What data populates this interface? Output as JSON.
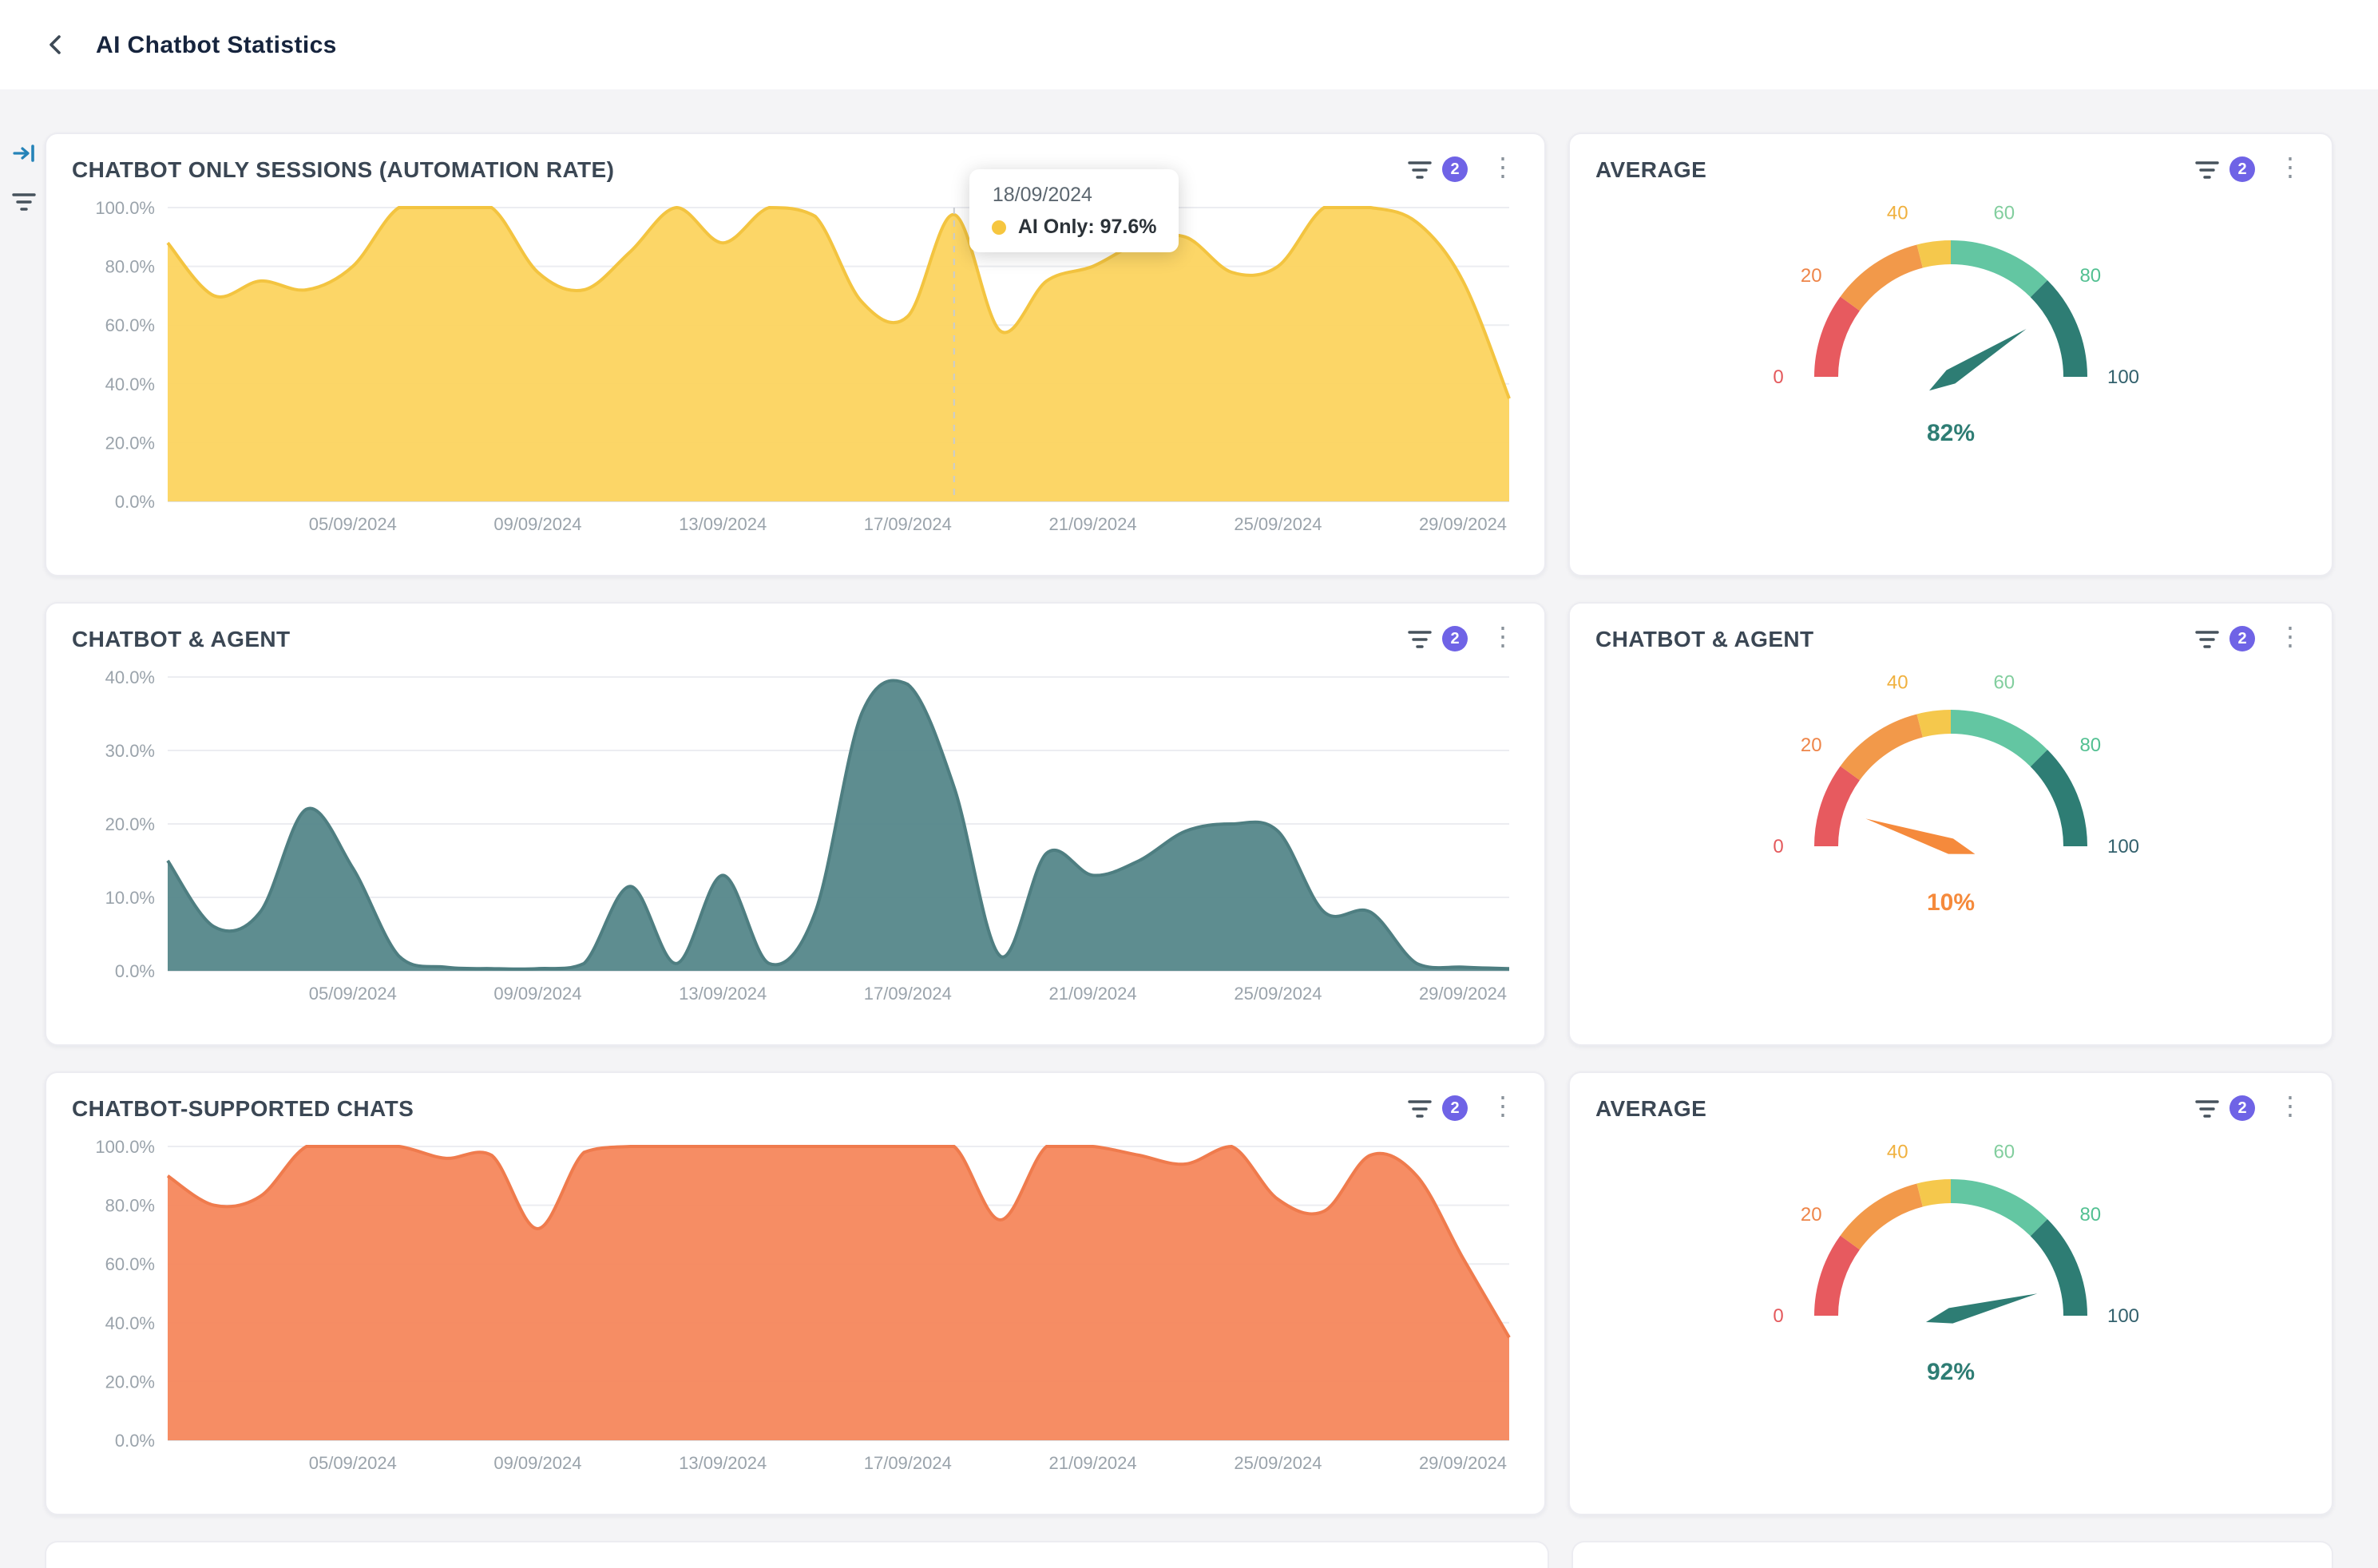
{
  "page": {
    "title": "AI Chatbot Statistics"
  },
  "ui": {
    "badge_color": "#6F63E6",
    "background": "#F4F4F6",
    "card_background": "#FFFFFF"
  },
  "cards": [
    {
      "title": "CHATBOT ONLY SESSIONS (AUTOMATION RATE)",
      "filter_count": "2"
    },
    {
      "title": "AVERAGE",
      "filter_count": "2"
    },
    {
      "title": "CHATBOT & AGENT",
      "filter_count": "2"
    },
    {
      "title": "CHATBOT & AGENT",
      "filter_count": "2"
    },
    {
      "title": "CHATBOT-SUPPORTED CHATS",
      "filter_count": "2"
    },
    {
      "title": "AVERAGE",
      "filter_count": "2"
    }
  ],
  "tooltip": {
    "date": "18/09/2024",
    "text": "AI Only: 97.6%",
    "dot_color": "#F6C63F"
  },
  "chart_data": [
    {
      "type": "area",
      "title": "CHATBOT ONLY SESSIONS (AUTOMATION RATE)",
      "ylim": [
        0,
        100
      ],
      "yticks": [
        {
          "v": 0,
          "label": "0.0%"
        },
        {
          "v": 20,
          "label": "20.0%"
        },
        {
          "v": 40,
          "label": "40.0%"
        },
        {
          "v": 60,
          "label": "60.0%"
        },
        {
          "v": 80,
          "label": "80.0%"
        },
        {
          "v": 100,
          "label": "100.0%"
        }
      ],
      "xticks": [
        {
          "day": 5,
          "label": "05/09/2024"
        },
        {
          "day": 9,
          "label": "09/09/2024"
        },
        {
          "day": 13,
          "label": "13/09/2024"
        },
        {
          "day": 17,
          "label": "17/09/2024"
        },
        {
          "day": 21,
          "label": "21/09/2024"
        },
        {
          "day": 25,
          "label": "25/09/2024"
        },
        {
          "day": 29,
          "label": "29/09/2024"
        }
      ],
      "values": [
        88,
        70,
        75,
        72,
        80,
        100,
        100,
        100,
        78,
        72,
        85,
        100,
        88,
        100,
        97,
        68,
        63,
        97.6,
        58,
        75,
        80,
        88,
        90,
        78,
        80,
        100,
        100,
        95,
        75,
        35
      ],
      "fill": "#FCD45F",
      "stroke": "#F3C440",
      "marker_day": 18
    },
    {
      "type": "gauge",
      "title": "AVERAGE",
      "range": [
        0,
        100
      ],
      "value": 82,
      "display": "82%",
      "needle_color": "#2E7D74",
      "value_color": "#2E7D74",
      "segments": [
        {
          "from": 0,
          "to": 20,
          "color": "#E75A5F"
        },
        {
          "from": 20,
          "to": 42,
          "color": "#F2994A"
        },
        {
          "from": 42,
          "to": 50,
          "color": "#F5C84C"
        },
        {
          "from": 50,
          "to": 75,
          "color": "#63C6A2"
        },
        {
          "from": 75,
          "to": 100,
          "color": "#2E7D74"
        }
      ],
      "ticks": [
        {
          "v": 0,
          "label": "0",
          "color": "#E4595C"
        },
        {
          "v": 20,
          "label": "20",
          "color": "#EE8549"
        },
        {
          "v": 40,
          "label": "40",
          "color": "#F0B13F"
        },
        {
          "v": 60,
          "label": "60",
          "color": "#82CE9E"
        },
        {
          "v": 80,
          "label": "80",
          "color": "#53C092"
        },
        {
          "v": 100,
          "label": "100",
          "color": "#33616D"
        }
      ]
    },
    {
      "type": "area",
      "title": "CHATBOT & AGENT",
      "ylim": [
        0,
        40
      ],
      "yticks": [
        {
          "v": 0,
          "label": "0.0%"
        },
        {
          "v": 10,
          "label": "10.0%"
        },
        {
          "v": 20,
          "label": "20.0%"
        },
        {
          "v": 30,
          "label": "30.0%"
        },
        {
          "v": 40,
          "label": "40.0%"
        }
      ],
      "xticks": [
        {
          "day": 5,
          "label": "05/09/2024"
        },
        {
          "day": 9,
          "label": "09/09/2024"
        },
        {
          "day": 13,
          "label": "13/09/2024"
        },
        {
          "day": 17,
          "label": "17/09/2024"
        },
        {
          "day": 21,
          "label": "21/09/2024"
        },
        {
          "day": 25,
          "label": "25/09/2024"
        },
        {
          "day": 29,
          "label": "29/09/2024"
        }
      ],
      "values": [
        15,
        6,
        8,
        22,
        14,
        2,
        0.5,
        0.3,
        0.3,
        1,
        11.5,
        1,
        13,
        1,
        8,
        35,
        39,
        25,
        2,
        16,
        13,
        15,
        19,
        20,
        19,
        8,
        8,
        1,
        0.5,
        0.3
      ],
      "fill": "#55878A",
      "stroke": "#4E7E81"
    },
    {
      "type": "gauge",
      "title": "CHATBOT & AGENT",
      "range": [
        0,
        100
      ],
      "value": 10,
      "display": "10%",
      "needle_color": "#F58A3C",
      "value_color": "#F58A3C",
      "segments": [
        {
          "from": 0,
          "to": 20,
          "color": "#E75A5F"
        },
        {
          "from": 20,
          "to": 42,
          "color": "#F2994A"
        },
        {
          "from": 42,
          "to": 50,
          "color": "#F5C84C"
        },
        {
          "from": 50,
          "to": 75,
          "color": "#63C6A2"
        },
        {
          "from": 75,
          "to": 100,
          "color": "#2E7D74"
        }
      ],
      "ticks": [
        {
          "v": 0,
          "label": "0",
          "color": "#E4595C"
        },
        {
          "v": 20,
          "label": "20",
          "color": "#EE8549"
        },
        {
          "v": 40,
          "label": "40",
          "color": "#F0B13F"
        },
        {
          "v": 60,
          "label": "60",
          "color": "#82CE9E"
        },
        {
          "v": 80,
          "label": "80",
          "color": "#53C092"
        },
        {
          "v": 100,
          "label": "100",
          "color": "#33616D"
        }
      ]
    },
    {
      "type": "area",
      "title": "CHATBOT-SUPPORTED CHATS",
      "ylim": [
        0,
        100
      ],
      "yticks": [
        {
          "v": 0,
          "label": "0.0%"
        },
        {
          "v": 20,
          "label": "20.0%"
        },
        {
          "v": 40,
          "label": "40.0%"
        },
        {
          "v": 60,
          "label": "60.0%"
        },
        {
          "v": 80,
          "label": "80.0%"
        },
        {
          "v": 100,
          "label": "100.0%"
        }
      ],
      "xticks": [
        {
          "day": 5,
          "label": "05/09/2024"
        },
        {
          "day": 9,
          "label": "09/09/2024"
        },
        {
          "day": 13,
          "label": "13/09/2024"
        },
        {
          "day": 17,
          "label": "17/09/2024"
        },
        {
          "day": 21,
          "label": "21/09/2024"
        },
        {
          "day": 25,
          "label": "25/09/2024"
        },
        {
          "day": 29,
          "label": "29/09/2024"
        }
      ],
      "values": [
        90,
        80,
        83,
        100,
        100,
        100,
        96,
        97,
        72,
        98,
        100,
        100,
        100,
        100,
        100,
        100,
        100,
        100,
        75,
        100,
        100,
        97,
        94,
        100,
        82,
        78,
        97,
        90,
        62,
        35
      ],
      "fill": "#F5875C",
      "stroke": "#EF7B4D"
    },
    {
      "type": "gauge",
      "title": "AVERAGE",
      "range": [
        0,
        100
      ],
      "value": 92,
      "display": "92%",
      "needle_color": "#2E7D74",
      "value_color": "#2E7D74",
      "segments": [
        {
          "from": 0,
          "to": 20,
          "color": "#E75A5F"
        },
        {
          "from": 20,
          "to": 42,
          "color": "#F2994A"
        },
        {
          "from": 42,
          "to": 50,
          "color": "#F5C84C"
        },
        {
          "from": 50,
          "to": 75,
          "color": "#63C6A2"
        },
        {
          "from": 75,
          "to": 100,
          "color": "#2E7D74"
        }
      ],
      "ticks": [
        {
          "v": 0,
          "label": "0",
          "color": "#E4595C"
        },
        {
          "v": 20,
          "label": "20",
          "color": "#EE8549"
        },
        {
          "v": 40,
          "label": "40",
          "color": "#F0B13F"
        },
        {
          "v": 60,
          "label": "60",
          "color": "#82CE9E"
        },
        {
          "v": 80,
          "label": "80",
          "color": "#53C092"
        },
        {
          "v": 100,
          "label": "100",
          "color": "#33616D"
        }
      ]
    }
  ]
}
